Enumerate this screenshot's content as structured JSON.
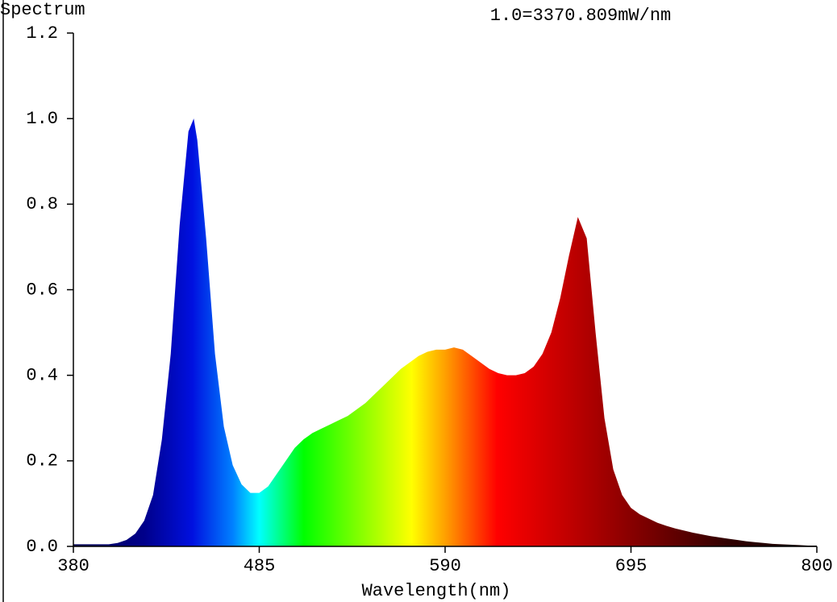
{
  "chart_data": {
    "type": "area",
    "title": "Spectrum",
    "subtitle": "1.0=3370.809mW/nm",
    "x_label": "Wavelength(nm)",
    "x": [
      380,
      385,
      390,
      395,
      400,
      405,
      410,
      415,
      420,
      425,
      430,
      435,
      440,
      445,
      448,
      450,
      455,
      460,
      465,
      470,
      475,
      480,
      485,
      490,
      495,
      500,
      505,
      510,
      515,
      520,
      525,
      530,
      535,
      540,
      545,
      550,
      555,
      560,
      565,
      570,
      575,
      580,
      585,
      590,
      595,
      600,
      605,
      610,
      615,
      620,
      625,
      630,
      635,
      640,
      645,
      650,
      655,
      660,
      665,
      670,
      675,
      680,
      685,
      690,
      695,
      700,
      705,
      710,
      715,
      720,
      725,
      730,
      735,
      740,
      745,
      750,
      755,
      760,
      765,
      770,
      775,
      780,
      785,
      790,
      795,
      800
    ],
    "values": [
      0.005,
      0.005,
      0.005,
      0.005,
      0.005,
      0.008,
      0.015,
      0.03,
      0.06,
      0.12,
      0.25,
      0.45,
      0.75,
      0.97,
      1.0,
      0.95,
      0.72,
      0.45,
      0.28,
      0.19,
      0.145,
      0.125,
      0.125,
      0.14,
      0.17,
      0.2,
      0.23,
      0.25,
      0.265,
      0.275,
      0.285,
      0.295,
      0.305,
      0.32,
      0.335,
      0.355,
      0.375,
      0.395,
      0.415,
      0.43,
      0.445,
      0.455,
      0.46,
      0.46,
      0.465,
      0.46,
      0.445,
      0.43,
      0.415,
      0.405,
      0.4,
      0.4,
      0.405,
      0.42,
      0.45,
      0.5,
      0.58,
      0.68,
      0.77,
      0.72,
      0.5,
      0.3,
      0.18,
      0.12,
      0.09,
      0.075,
      0.065,
      0.055,
      0.048,
      0.042,
      0.037,
      0.032,
      0.028,
      0.024,
      0.021,
      0.018,
      0.015,
      0.012,
      0.01,
      0.008,
      0.006,
      0.005,
      0.004,
      0.003,
      0.002,
      0.002
    ],
    "xlim": [
      380,
      800
    ],
    "xticks": [
      380,
      485,
      590,
      695,
      800
    ],
    "ylim": [
      0,
      1.2
    ],
    "yticks": [
      {
        "value": 0,
        "label": "0.0"
      },
      0.2,
      0.4,
      0.6,
      0.8,
      {
        "value": 1,
        "label": "1.0"
      },
      1.2
    ]
  }
}
